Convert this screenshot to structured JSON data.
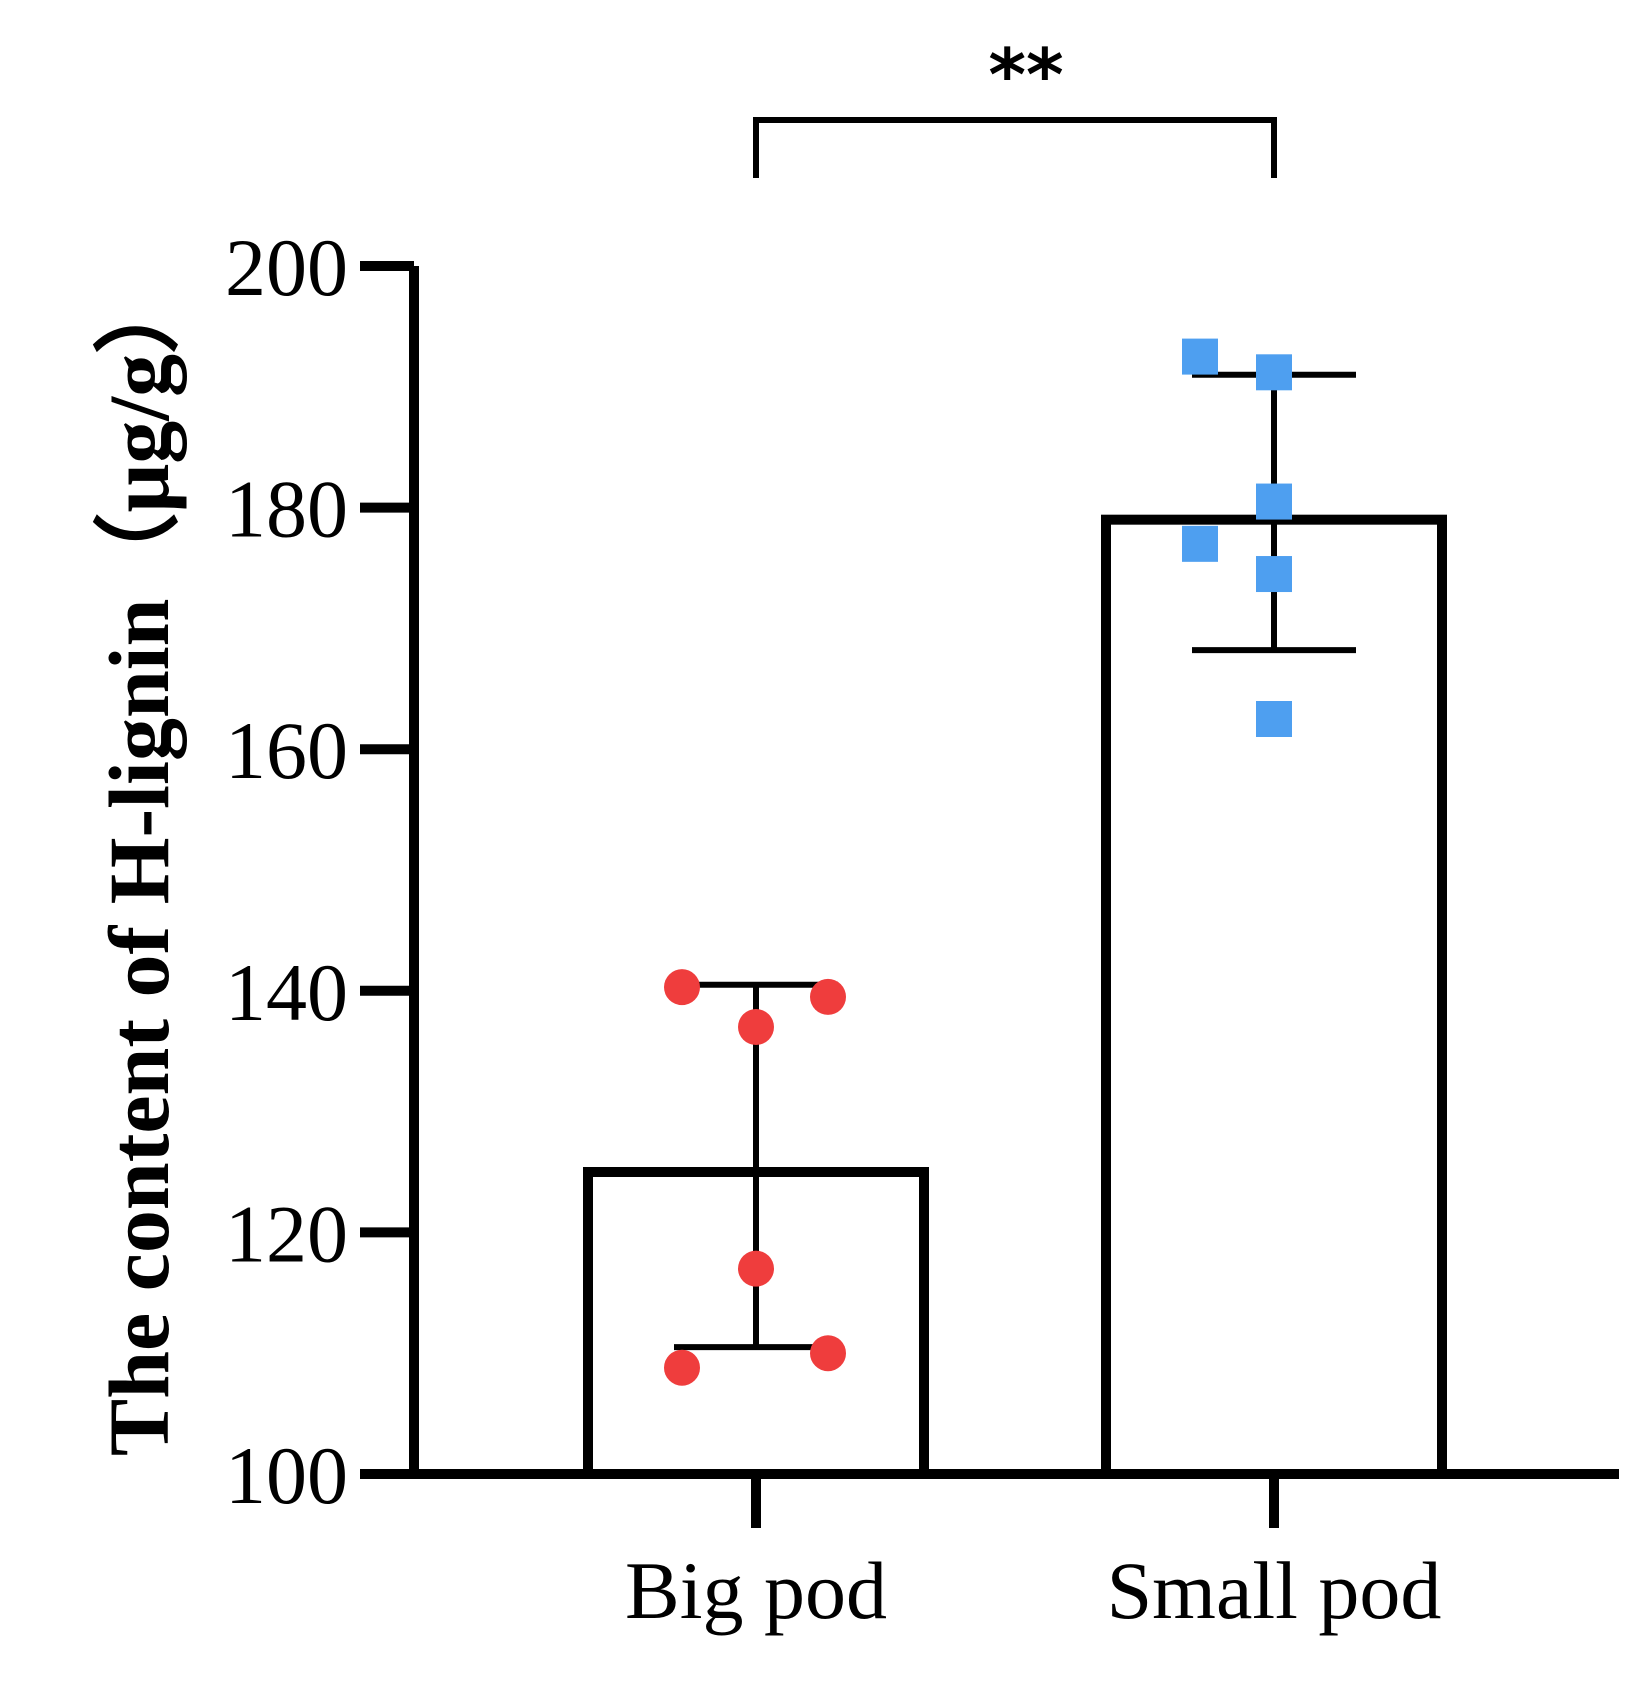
{
  "chart_data": {
    "type": "bar",
    "title": "",
    "xlabel": "",
    "ylabel": "The content of H-lignin（μg/g）",
    "ylim": [
      100,
      200
    ],
    "yticks": [
      "100",
      "120",
      "140",
      "160",
      "180",
      "200"
    ],
    "categories": [
      "Big pod",
      "Small pod"
    ],
    "values": [
      125,
      179
    ],
    "error": [
      {
        "low": 110.5,
        "high": 140.5
      },
      {
        "low": 168.2,
        "high": 191.0
      }
    ],
    "points": [
      [
        140.3,
        139.5,
        137.0,
        117.0,
        110.0,
        108.8
      ],
      [
        192.5,
        191.2,
        180.5,
        177.0,
        174.5,
        162.5
      ]
    ],
    "point_markers": [
      "circle",
      "square"
    ],
    "significance": {
      "label": "**",
      "pair": [
        "Big pod",
        "Small pod"
      ]
    },
    "colors": {
      "big_pod_points": "#ef3d3d",
      "small_pod_points": "#4e9ff0",
      "bar_edge": "#000000",
      "bar_fill": "#ffffff"
    }
  }
}
